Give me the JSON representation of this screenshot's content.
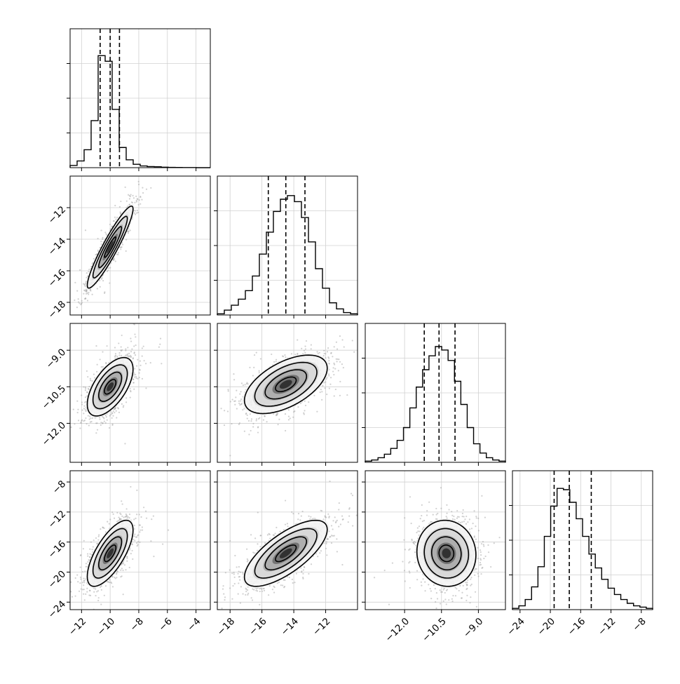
{
  "chart_data": {
    "type": "corner",
    "n_params": 4,
    "params": [
      {
        "range": [
          -12.8,
          -3.0
        ],
        "ticks": [
          -12,
          -10,
          -8,
          -6,
          -4
        ],
        "tick_labels": [
          "−12",
          "−10",
          "−8",
          "−6",
          "−4"
        ],
        "quantiles": [
          -10.7,
          -10.0,
          -9.35
        ],
        "hist": {
          "edges_start": -12.8,
          "edges_end": -3.0,
          "counts": [
            0.02,
            0.06,
            0.16,
            0.42,
            1.0,
            0.95,
            0.52,
            0.18,
            0.07,
            0.03,
            0.015,
            0.01,
            0.008,
            0.004,
            0.003,
            0.002,
            0.001,
            0.001,
            0.0,
            0.0
          ],
          "ymax_scale": 1.24
        }
      },
      {
        "range": [
          -18.8,
          -10.0
        ],
        "ticks": [
          -18,
          -16,
          -14,
          -12
        ],
        "tick_labels": [
          "−18",
          "−16",
          "−14",
          "−12"
        ],
        "quantiles": [
          -15.6,
          -14.5,
          -13.3
        ],
        "hist": {
          "edges_start": -18.8,
          "edges_end": -10.0,
          "counts": [
            0.01,
            0.04,
            0.08,
            0.13,
            0.2,
            0.32,
            0.5,
            0.68,
            0.85,
            0.95,
            0.98,
            0.93,
            0.8,
            0.6,
            0.38,
            0.22,
            0.1,
            0.05,
            0.02,
            0.01
          ],
          "ymax_scale": 1.14
        }
      },
      {
        "range": [
          -13.6,
          -7.9
        ],
        "ticks": [
          -12.0,
          -10.5,
          -9.0
        ],
        "tick_labels": [
          "−12.0",
          "−10.5",
          "−9.0"
        ],
        "quantiles": [
          -11.2,
          -10.6,
          -9.95
        ],
        "hist": {
          "edges_start": -13.6,
          "edges_end": -7.9,
          "counts": [
            0.01,
            0.02,
            0.04,
            0.07,
            0.12,
            0.19,
            0.3,
            0.47,
            0.65,
            0.8,
            0.92,
            1.0,
            0.97,
            0.88,
            0.7,
            0.5,
            0.3,
            0.16,
            0.08,
            0.04,
            0.02,
            0.01
          ],
          "ymax_scale": 1.2
        }
      },
      {
        "range": [
          -25,
          -6.5
        ],
        "ticks": [
          -24,
          -20,
          -16,
          -12,
          -8
        ],
        "tick_labels": [
          "−24",
          "−20",
          "−16",
          "−12",
          "−8"
        ],
        "quantiles": [
          -19.5,
          -17.5,
          -14.6
        ],
        "hist": {
          "edges_start": -25.0,
          "edges_end": -6.5,
          "counts": [
            0.01,
            0.03,
            0.08,
            0.18,
            0.34,
            0.58,
            0.82,
            0.96,
            0.95,
            0.85,
            0.72,
            0.58,
            0.44,
            0.33,
            0.24,
            0.17,
            0.12,
            0.08,
            0.05,
            0.03,
            0.02,
            0.01
          ],
          "ymax_scale": 1.1
        }
      }
    ],
    "pairs": [
      {
        "row": 1,
        "col": 0,
        "mean": [
          -10.0,
          -14.5
        ],
        "sd": [
          0.8,
          1.3
        ],
        "rho": 0.93
      },
      {
        "row": 2,
        "col": 0,
        "mean": [
          -10.0,
          -10.5
        ],
        "sd": [
          0.8,
          0.6
        ],
        "rho": 0.6
      },
      {
        "row": 2,
        "col": 1,
        "mean": [
          -14.5,
          -10.4
        ],
        "sd": [
          1.3,
          0.6
        ],
        "rho": 0.55
      },
      {
        "row": 3,
        "col": 0,
        "mean": [
          -10.0,
          -17.5
        ],
        "sd": [
          0.8,
          2.2
        ],
        "rho": 0.7
      },
      {
        "row": 3,
        "col": 1,
        "mean": [
          -14.5,
          -17.5
        ],
        "sd": [
          1.3,
          2.2
        ],
        "rho": 0.72
      },
      {
        "row": 3,
        "col": 2,
        "mean": [
          -10.3,
          -17.5
        ],
        "sd": [
          0.6,
          2.2
        ],
        "rho": -0.05
      }
    ],
    "contour_levels": [
      0.5,
      1.0,
      1.5,
      2.0
    ],
    "grid": true,
    "xlabel": "",
    "ylabel": ""
  }
}
